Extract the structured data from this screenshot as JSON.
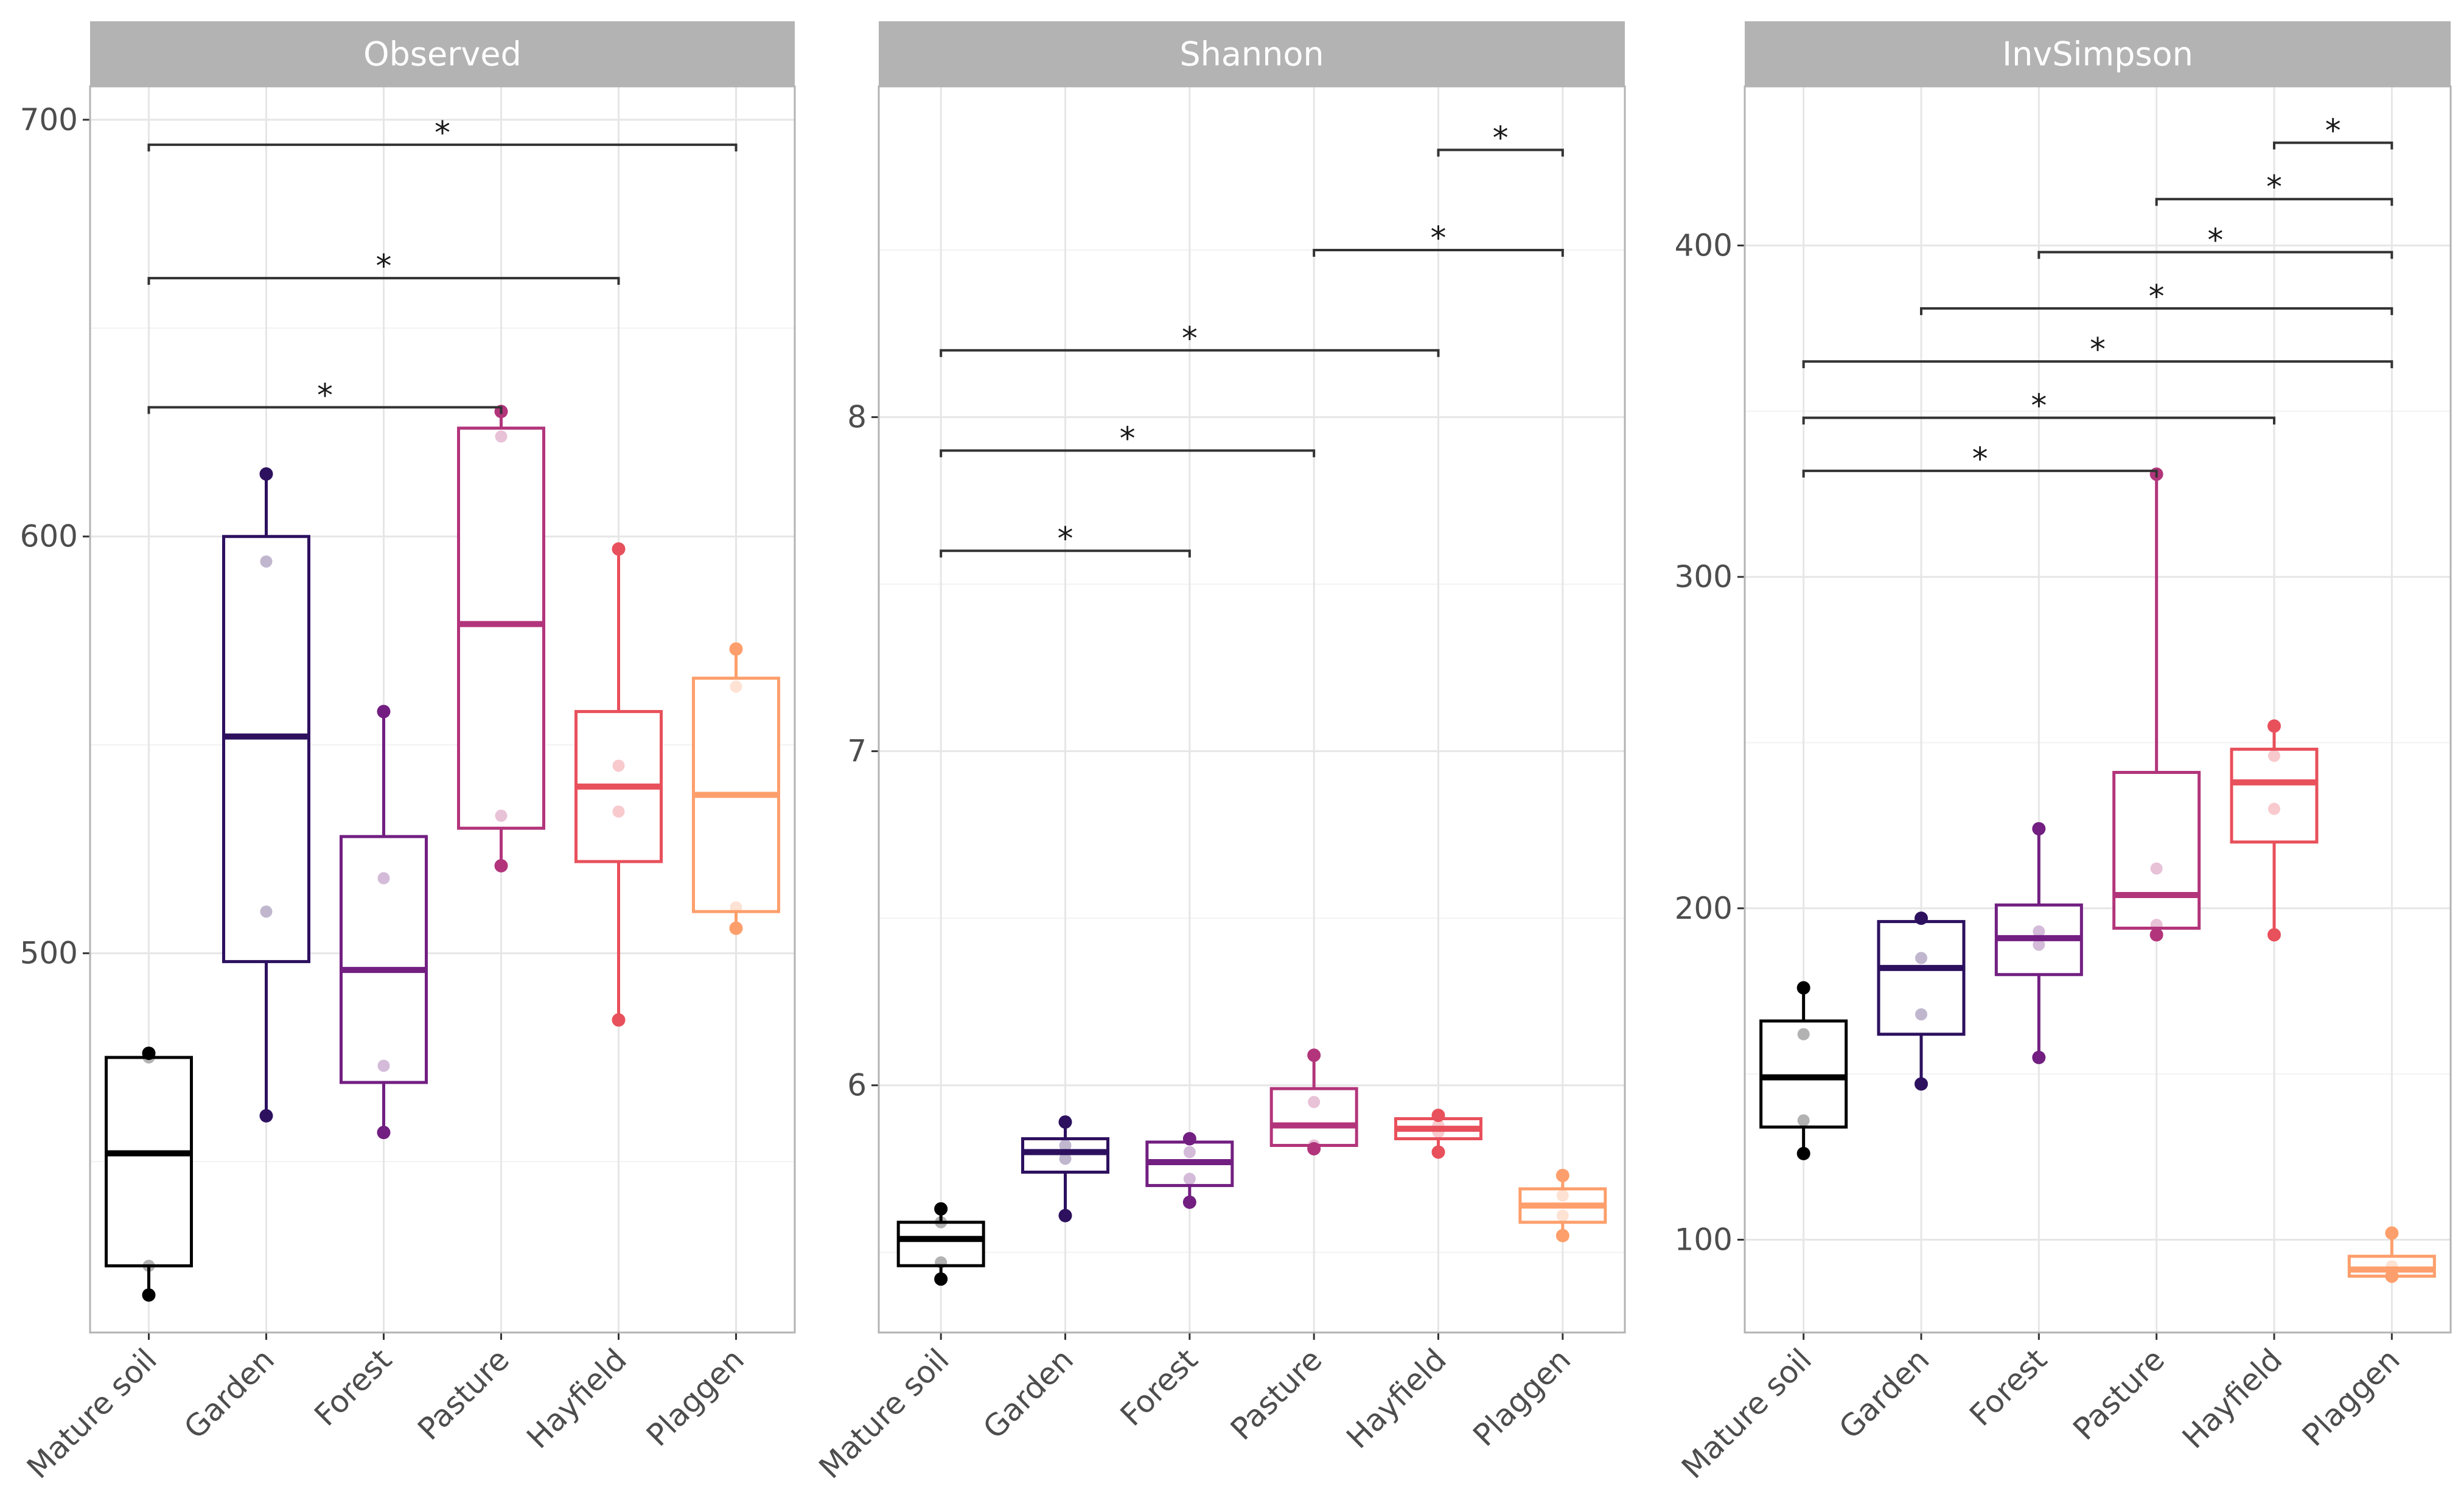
{
  "chart_data": {
    "type": "boxplot",
    "categories": [
      "Mature soil",
      "Garden",
      "Forest",
      "Pasture",
      "Hayfield",
      "Plaggen"
    ],
    "colors": [
      "#000000",
      "#2d115f",
      "#721f81",
      "#b2357b",
      "#e8505b",
      "#fd9f6c"
    ],
    "panels": [
      {
        "title": "Observed",
        "ylim": [
          409,
          708
        ],
        "yticks": [
          500,
          600,
          700
        ],
        "yticklabels": [
          "500",
          "600",
          "700"
        ],
        "boxes": [
          {
            "min": 418,
            "q1": 425,
            "median": 452,
            "q3": 475,
            "max": 476,
            "points": [
              476,
              475,
              425,
              418
            ]
          },
          {
            "min": 461,
            "q1": 498,
            "median": 552,
            "q3": 600,
            "max": 615,
            "points": [
              615,
              594,
              510,
              461
            ]
          },
          {
            "min": 457,
            "q1": 469,
            "median": 496,
            "q3": 528,
            "max": 558,
            "points": [
              558,
              518,
              473,
              457
            ]
          },
          {
            "min": 521,
            "q1": 530,
            "median": 579,
            "q3": 626,
            "max": 630,
            "points": [
              630,
              624,
              533,
              521
            ]
          },
          {
            "min": 484,
            "q1": 522,
            "median": 540,
            "q3": 558,
            "max": 597,
            "points": [
              597,
              545,
              534,
              484
            ]
          },
          {
            "min": 506,
            "q1": 510,
            "median": 538,
            "q3": 566,
            "max": 573,
            "points": [
              573,
              564,
              511,
              506
            ]
          }
        ],
        "comparisons": [
          {
            "from": 0,
            "to": 3,
            "y": 631,
            "label": "*"
          },
          {
            "from": 0,
            "to": 4,
            "y": 662,
            "label": "*"
          },
          {
            "from": 0,
            "to": 5,
            "y": 694,
            "label": "*"
          }
        ]
      },
      {
        "title": "Shannon",
        "ylim": [
          5.26,
          8.99
        ],
        "yticks": [
          6,
          7,
          8
        ],
        "yticklabels": [
          "6",
          "7",
          "8"
        ],
        "boxes": [
          {
            "min": 5.42,
            "q1": 5.46,
            "median": 5.54,
            "q3": 5.59,
            "max": 5.63,
            "points": [
              5.63,
              5.59,
              5.47,
              5.42
            ]
          },
          {
            "min": 5.61,
            "q1": 5.74,
            "median": 5.8,
            "q3": 5.84,
            "max": 5.89,
            "points": [
              5.89,
              5.82,
              5.78,
              5.61
            ]
          },
          {
            "min": 5.65,
            "q1": 5.7,
            "median": 5.77,
            "q3": 5.83,
            "max": 5.84,
            "points": [
              5.84,
              5.8,
              5.72,
              5.65
            ]
          },
          {
            "min": 5.81,
            "q1": 5.82,
            "median": 5.88,
            "q3": 5.99,
            "max": 6.09,
            "points": [
              6.09,
              5.95,
              5.82,
              5.81
            ]
          },
          {
            "min": 5.8,
            "q1": 5.84,
            "median": 5.87,
            "q3": 5.9,
            "max": 5.91,
            "points": [
              5.91,
              5.88,
              5.86,
              5.8
            ]
          },
          {
            "min": 5.55,
            "q1": 5.59,
            "median": 5.64,
            "q3": 5.69,
            "max": 5.73,
            "points": [
              5.73,
              5.67,
              5.61,
              5.55
            ]
          }
        ],
        "comparisons": [
          {
            "from": 0,
            "to": 2,
            "y": 7.6,
            "label": "*"
          },
          {
            "from": 0,
            "to": 3,
            "y": 7.9,
            "label": "*"
          },
          {
            "from": 0,
            "to": 4,
            "y": 8.2,
            "label": "*"
          },
          {
            "from": 3,
            "to": 5,
            "y": 8.5,
            "label": "*"
          },
          {
            "from": 4,
            "to": 5,
            "y": 8.8,
            "label": "*"
          }
        ]
      },
      {
        "title": "InvSimpson",
        "ylim": [
          72,
          448
        ],
        "yticks": [
          100,
          200,
          300,
          400
        ],
        "yticklabels": [
          "100",
          "200",
          "300",
          "400"
        ],
        "boxes": [
          {
            "min": 126,
            "q1": 134,
            "median": 149,
            "q3": 166,
            "max": 176,
            "points": [
              176,
              162,
              136,
              126
            ]
          },
          {
            "min": 147,
            "q1": 162,
            "median": 182,
            "q3": 196,
            "max": 197,
            "points": [
              197,
              185,
              168,
              147
            ]
          },
          {
            "min": 155,
            "q1": 180,
            "median": 191,
            "q3": 201,
            "max": 224,
            "points": [
              224,
              193,
              189,
              155
            ]
          },
          {
            "min": 192,
            "q1": 194,
            "median": 204,
            "q3": 241,
            "max": 331,
            "points": [
              331,
              212,
              195,
              192
            ]
          },
          {
            "min": 192,
            "q1": 220,
            "median": 238,
            "q3": 248,
            "max": 255,
            "points": [
              255,
              246,
              230,
              192
            ]
          },
          {
            "min": 89,
            "q1": 89,
            "median": 91,
            "q3": 95,
            "max": 102,
            "points": [
              102,
              92,
              90,
              89
            ]
          }
        ],
        "comparisons": [
          {
            "from": 0,
            "to": 3,
            "y": 332,
            "label": "*"
          },
          {
            "from": 0,
            "to": 4,
            "y": 348,
            "label": "*"
          },
          {
            "from": 0,
            "to": 5,
            "y": 365,
            "label": "*"
          },
          {
            "from": 1,
            "to": 5,
            "y": 381,
            "label": "*"
          },
          {
            "from": 2,
            "to": 5,
            "y": 398,
            "label": "*"
          },
          {
            "from": 3,
            "to": 5,
            "y": 414,
            "label": "*"
          },
          {
            "from": 4,
            "to": 5,
            "y": 431,
            "label": "*"
          }
        ]
      }
    ]
  }
}
